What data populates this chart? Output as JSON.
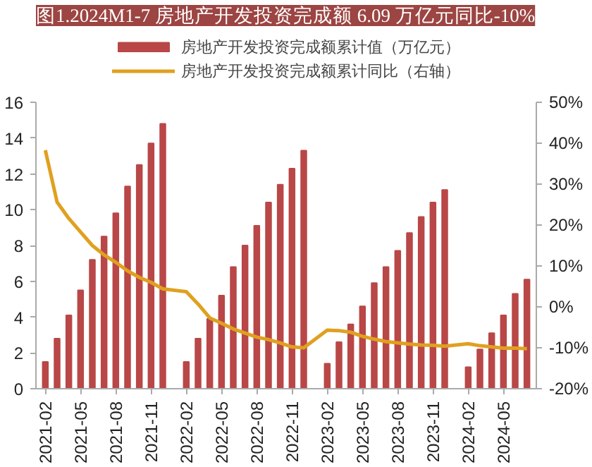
{
  "chart_data": {
    "type": "bar",
    "title": "图1.2024M1-7 房地产开发投资完成额 6.09 万亿元同比-10%",
    "categories": [
      "2021-02",
      null,
      null,
      "2021-05",
      null,
      null,
      "2021-08",
      null,
      null,
      "2021-11",
      null,
      null,
      "2022-02",
      null,
      null,
      "2022-05",
      null,
      null,
      "2022-08",
      null,
      null,
      "2022-11",
      null,
      null,
      "2023-02",
      null,
      null,
      "2023-05",
      null,
      null,
      "2023-08",
      null,
      null,
      "2023-11",
      null,
      null,
      "2024-02",
      null,
      null,
      "2024-05",
      null,
      null
    ],
    "series": [
      {
        "name": "房地产开发投资完成额累计值（万亿元）",
        "color": "#b94747",
        "values": [
          1.5,
          2.8,
          4.1,
          5.5,
          7.2,
          8.5,
          9.8,
          11.3,
          12.5,
          13.7,
          14.8,
          null,
          1.5,
          2.8,
          3.9,
          5.2,
          6.8,
          8.0,
          9.1,
          10.4,
          11.4,
          12.3,
          13.3,
          null,
          1.4,
          2.6,
          3.6,
          4.6,
          5.9,
          6.8,
          7.7,
          8.7,
          9.6,
          10.4,
          11.1,
          null,
          1.2,
          2.2,
          3.1,
          4.1,
          5.3,
          6.1
        ]
      },
      {
        "name": "房地产开发投资完成额累计同比（右轴）",
        "type": "line",
        "axis": "y2",
        "color": "#e0a020",
        "values": [
          38.3,
          25.6,
          21.6,
          18.3,
          15.0,
          12.7,
          10.9,
          8.8,
          7.2,
          6.0,
          4.4,
          null,
          3.7,
          0.7,
          -2.7,
          -4.0,
          -5.4,
          -6.4,
          -7.4,
          -8.0,
          -8.8,
          -9.8,
          -10.0,
          null,
          -5.7,
          -5.8,
          -6.2,
          -7.2,
          -7.9,
          -8.5,
          -8.8,
          -9.1,
          -9.3,
          -9.4,
          -9.6,
          null,
          -9.0,
          -9.5,
          -9.8,
          -10.1,
          -10.1,
          -10.2
        ]
      }
    ],
    "ylim": [
      0,
      16
    ],
    "yticks": [
      0,
      2,
      4,
      6,
      8,
      10,
      12,
      14,
      16
    ],
    "y2lim": [
      -20,
      50
    ],
    "y2ticks": [
      {
        "value": -20,
        "label": "-20%"
      },
      {
        "value": -10,
        "label": "-10%"
      },
      {
        "value": 0,
        "label": "0%"
      },
      {
        "value": 10,
        "label": "10%"
      },
      {
        "value": 20,
        "label": "20%"
      },
      {
        "value": 30,
        "label": "30%"
      },
      {
        "value": 40,
        "label": "40%"
      },
      {
        "value": 50,
        "label": "50%"
      }
    ],
    "legend": "top",
    "grid": false
  }
}
